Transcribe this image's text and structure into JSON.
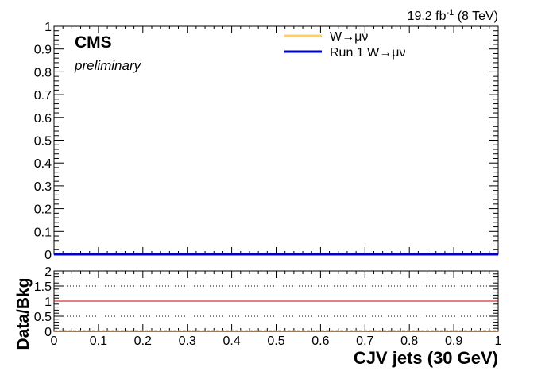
{
  "lumi": {
    "value": "19.2 fb",
    "exp": "-1",
    "energy": "(8 TeV)"
  },
  "cms_label": "CMS",
  "cms_sublabel": "preliminary",
  "chart_data": [
    {
      "type": "line",
      "x": [
        0,
        1
      ],
      "xlim": [
        0,
        1
      ],
      "ylim": [
        0,
        1
      ],
      "xticks": [
        "0",
        "0.1",
        "0.2",
        "0.3",
        "0.4",
        "0.5",
        "0.6",
        "0.7",
        "0.8",
        "0.9",
        "1"
      ],
      "yticks": [
        "0",
        "0.1",
        "0.2",
        "0.3",
        "0.4",
        "0.5",
        "0.6",
        "0.7",
        "0.8",
        "0.9",
        "1"
      ],
      "series": [
        {
          "name": "W→μν",
          "color": "#ffcc66",
          "values": [
            0,
            0
          ]
        },
        {
          "name": "Run 1 W→μν",
          "color": "#0000cc",
          "values": [
            0,
            0
          ]
        }
      ],
      "legend_placement": "top-right",
      "grid": false
    },
    {
      "type": "line",
      "xlim": [
        0,
        1
      ],
      "ylim": [
        0,
        2
      ],
      "ylabel": "Data/Bkg",
      "xlabel": "CJV jets (30 GeV)",
      "xticks": [
        "0",
        "0.1",
        "0.2",
        "0.3",
        "0.4",
        "0.5",
        "0.6",
        "0.7",
        "0.8",
        "0.9",
        "1"
      ],
      "yticks": [
        "0",
        "0.5",
        "1",
        "1.5",
        "2"
      ],
      "reference_line": {
        "y": 1,
        "color": "#cc0000"
      },
      "dotted_lines": [
        0.5,
        1.5
      ],
      "grid": false
    }
  ]
}
